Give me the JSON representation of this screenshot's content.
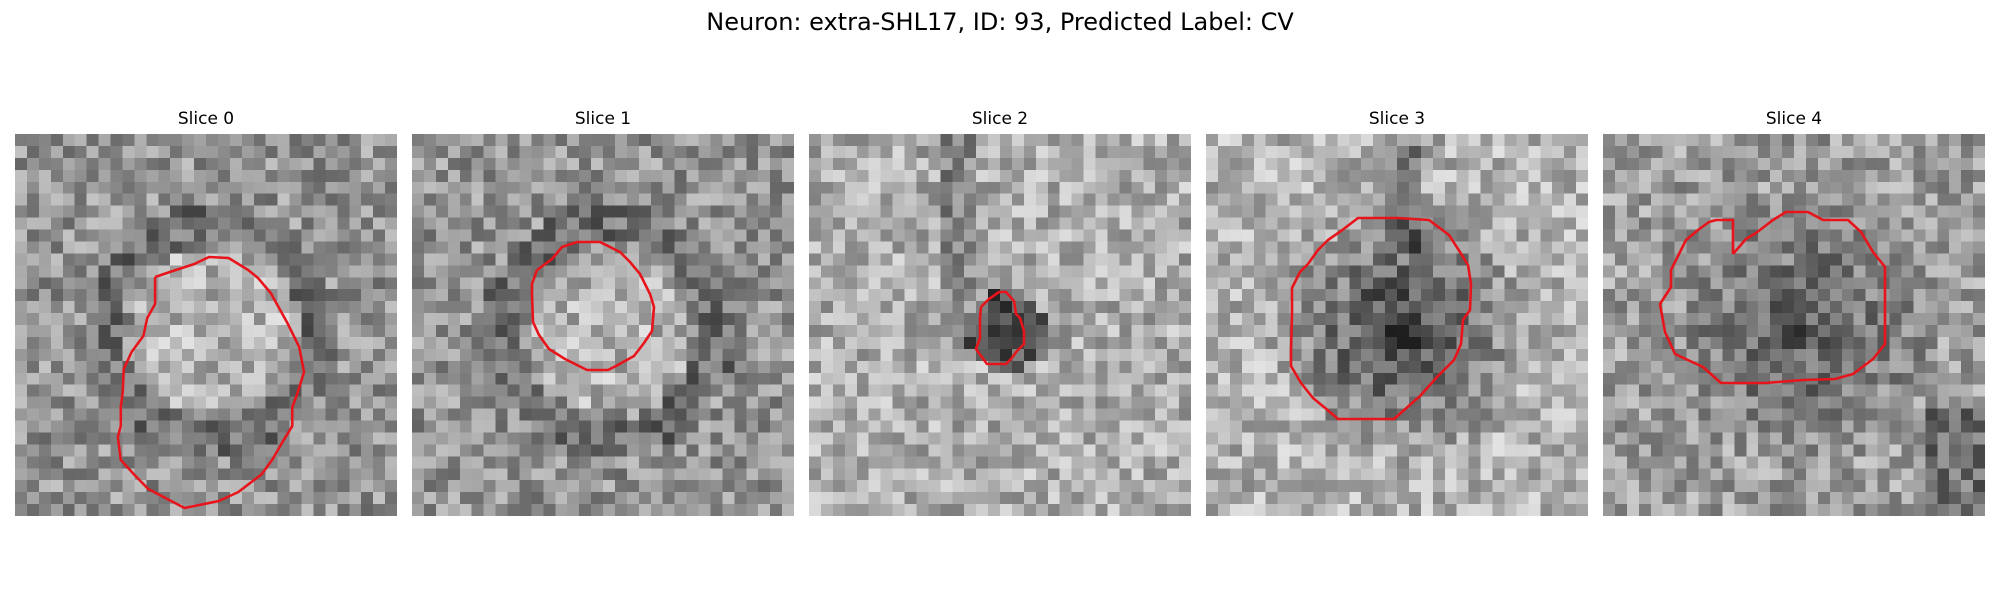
{
  "figure": {
    "title": "Neuron: extra-SHL17, ID: 93, Predicted Label: CV"
  },
  "slices": [
    {
      "label": "Slice 0",
      "roi_color": "#e8141b",
      "tone": "ring-light-center",
      "seed": 11
    },
    {
      "label": "Slice 1",
      "roi_color": "#e8141b",
      "tone": "ring-light-center",
      "seed": 23
    },
    {
      "label": "Slice 2",
      "roi_color": "#e8141b",
      "tone": "small-dark-spot",
      "seed": 37
    },
    {
      "label": "Slice 3",
      "roi_color": "#e8141b",
      "tone": "dark-blob",
      "seed": 41
    },
    {
      "label": "Slice 4",
      "roi_color": "#e8141b",
      "tone": "medium-dark-blob",
      "seed": 59
    }
  ]
}
